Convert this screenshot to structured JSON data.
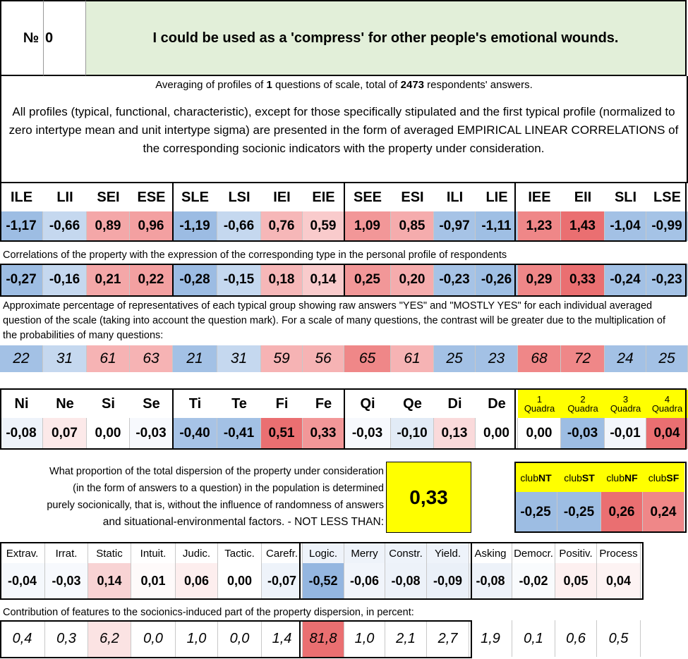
{
  "header": {
    "no_label": "№",
    "number": "0",
    "title": "I could be used as a 'compress' for other people's emotional wounds."
  },
  "summary": {
    "prefix": "Averaging of profiles of ",
    "questions": "1",
    "middle": " questions of scale, total of ",
    "respondents": "2473",
    "suffix": " respondents' answers."
  },
  "description": "All profiles (typical, functional, characteristic), except for those specifically stipulated and the first typical profile (normalized to zero intertype mean and unit intertype sigma) are presented in the form of averaged EMPIRICAL LINEAR CORRELATIONS of the corresponding socionic indicators with the property under consideration.",
  "types": {
    "labels": [
      "ILE",
      "LII",
      "SEI",
      "ESE",
      "SLE",
      "LSI",
      "IEI",
      "EIE",
      "SEE",
      "ESI",
      "ILI",
      "LIE",
      "IEE",
      "EII",
      "SLI",
      "LSE"
    ],
    "normalized": [
      "-1,17",
      "-0,66",
      "0,89",
      "0,96",
      "-1,19",
      "-0,66",
      "0,76",
      "0,59",
      "1,09",
      "0,85",
      "-0,97",
      "-1,11",
      "1,23",
      "1,43",
      "-1,04",
      "-0,99"
    ],
    "normalized_colors": [
      "#9dbde3",
      "#c5d8ef",
      "#f4a7a8",
      "#f3a0a1",
      "#9cbce3",
      "#c5d8ef",
      "#f6b7b8",
      "#f9cbcc",
      "#f29798",
      "#f5acad",
      "#a6c3e6",
      "#9fbfe4",
      "#ef8788",
      "#ea6f71",
      "#a3c1e5",
      "#a5c3e6"
    ],
    "corr_note": "Correlations of the property with the expression of the corresponding type in the personal profile of respondents",
    "correlations": [
      "-0,27",
      "-0,16",
      "0,21",
      "0,22",
      "-0,28",
      "-0,15",
      "0,18",
      "0,14",
      "0,25",
      "0,20",
      "-0,23",
      "-0,26",
      "0,29",
      "0,33",
      "-0,24",
      "-0,23"
    ],
    "correlation_colors": [
      "#9dbde3",
      "#c5d8ef",
      "#f4a7a8",
      "#f3a0a1",
      "#9cbce3",
      "#c5d8ef",
      "#f6b7b8",
      "#f9cbcc",
      "#f29798",
      "#f5acad",
      "#a6c3e6",
      "#9fbfe4",
      "#ef8788",
      "#ea6f71",
      "#a3c1e5",
      "#a5c3e6"
    ],
    "pct_note": "Approximate percentage of representatives of each typical group showing raw answers \"YES\" and \"MOSTLY YES\" for each individual averaged question of the scale (taking into account the question mark). For a scale of many questions, the contrast will be greater due to the multiplication of the probabilities of many questions:",
    "percentages": [
      "22",
      "31",
      "61",
      "63",
      "21",
      "31",
      "59",
      "56",
      "65",
      "61",
      "25",
      "23",
      "68",
      "72",
      "24",
      "25"
    ]
  },
  "functions": {
    "labels": [
      "Ni",
      "Ne",
      "Si",
      "Se",
      "Ti",
      "Te",
      "Fi",
      "Fe",
      "Qi",
      "Qe",
      "Di",
      "De"
    ],
    "values": [
      "-0,08",
      "0,07",
      "0,00",
      "-0,03",
      "-0,40",
      "-0,41",
      "0,51",
      "0,33",
      "-0,03",
      "-0,10",
      "0,13",
      "0,00"
    ],
    "colors": [
      "#eef3fa",
      "#fce9e9",
      "#ffffff",
      "#f7f9fd",
      "#a7c3e6",
      "#a3c1e5",
      "#ea6f71",
      "#f29798",
      "#f7f9fd",
      "#e2ebf6",
      "#fadadb",
      "#ffffff"
    ]
  },
  "quadras": {
    "numbers": [
      "1",
      "2",
      "3",
      "4"
    ],
    "word": "Quadra",
    "values": [
      "0,00",
      "-0,03",
      "-0,01",
      "0,04"
    ],
    "colors": [
      "#ffffff",
      "#9dbde3",
      "#f3f6fb",
      "#ea6f71"
    ]
  },
  "proportion": {
    "lines": [
      "What proportion of the total dispersion of the property under consideration",
      "(in the form of answers to a question) in the population is determined",
      "purely socionically, that is, without the influence of randomness of answers",
      "and situational-environmental factors. - NOT LESS THAN:"
    ],
    "value": "0,33"
  },
  "clubs": {
    "prefix": "club",
    "codes": [
      "NT",
      "ST",
      "NF",
      "SF"
    ],
    "values": [
      "-0,25",
      "-0,25",
      "0,26",
      "0,24"
    ],
    "colors": [
      "#9dbde3",
      "#9dbde3",
      "#ea6f71",
      "#ef8788"
    ]
  },
  "traits": {
    "labels": [
      "Extrav.",
      "Irrat.",
      "Static",
      "Intuit.",
      "Judic.",
      "Tactic.",
      "Carefr.",
      "Logic.",
      "Merry",
      "Constr.",
      "Yield.",
      "Asking",
      "Democr.",
      "Positiv.",
      "Process"
    ],
    "values": [
      "-0,04",
      "-0,03",
      "0,14",
      "0,01",
      "0,06",
      "0,00",
      "-0,07",
      "-0,52",
      "-0,06",
      "-0,08",
      "-0,09",
      "-0,08",
      "-0,02",
      "0,05",
      "0,04"
    ],
    "colors": [
      "#f5f8fc",
      "#f7f9fd",
      "#f8d3d4",
      "#fefafa",
      "#fdeeee",
      "#ffffff",
      "#eef3fa",
      "#94b6e0",
      "#f1f5fb",
      "#edf2f9",
      "#eaf0f8",
      "#edf2f9",
      "#f9fbfd",
      "#fdf0f0",
      "#fdf3f3"
    ],
    "contrib_note": "Contribution of features to the sociotics-induced part of the property dispersion, in percent:",
    "contributions": [
      "0,4",
      "0,3",
      "6,2",
      "0,0",
      "1,0",
      "0,0",
      "1,4",
      "81,8",
      "1,0",
      "2,1",
      "2,7",
      "1,9",
      "0,1",
      "0,6",
      "0,5"
    ],
    "contrib_colors": [
      "#ffffff",
      "#ffffff",
      "#fbe3e3",
      "#ffffff",
      "#ffffff",
      "#ffffff",
      "#ffffff",
      "#ea6f71",
      "#ffffff",
      "#ffffff",
      "#ffffff",
      "#ffffff",
      "#ffffff",
      "#ffffff",
      "#ffffff"
    ]
  }
}
